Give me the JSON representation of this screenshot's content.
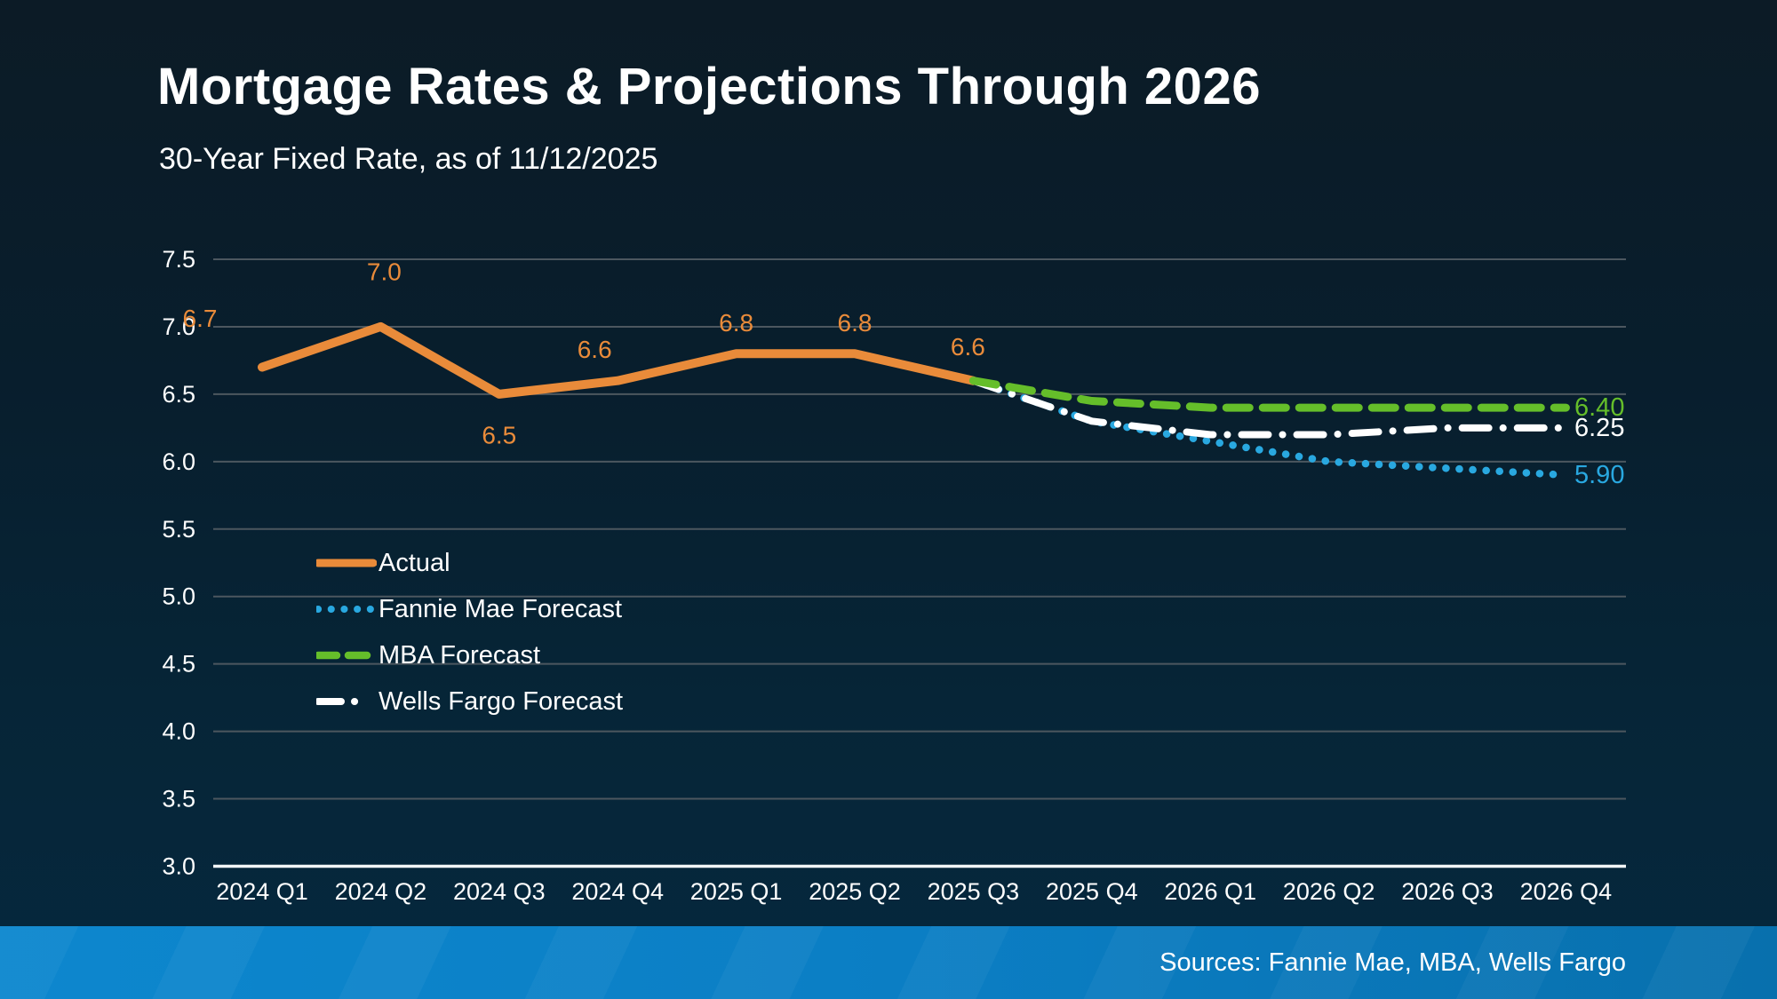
{
  "page": {
    "title": "Mortgage Rates & Projections Through 2026",
    "subtitle": "30-Year Fixed Rate, as of 11/12/2025"
  },
  "footer": {
    "sources": "Sources: Fannie Mae, MBA, Wells Fargo"
  },
  "colors": {
    "background_top": "#0C1B26",
    "background_bottom": "#05283E",
    "gridline": "#4C575F",
    "axis_line": "#F2F6F8",
    "text": "#FFFFFF",
    "accent_orange": "#E98B3A",
    "accent_blue": "#29A8E0",
    "accent_green": "#65BE2A",
    "footer_blue_left": "#0D87CE",
    "footer_blue_right": "#0870AD"
  },
  "chart_data": {
    "type": "line",
    "title": "Mortgage Rates & Projections Through 2026",
    "subtitle": "30-Year Fixed Rate, as of 11/12/2025",
    "categories": [
      "2024 Q1",
      "2024 Q2",
      "2024 Q3",
      "2024 Q4",
      "2025 Q1",
      "2025 Q2",
      "2025 Q3",
      "2025 Q4",
      "2026 Q1",
      "2026 Q2",
      "2026 Q3",
      "2026 Q4"
    ],
    "ylim": [
      3.0,
      7.5
    ],
    "ytick_step": 0.5,
    "ytick_labels": [
      "7.5",
      "7.0",
      "6.5",
      "6.0",
      "5.5",
      "5.0",
      "4.5",
      "4.0",
      "3.5",
      "3.0"
    ],
    "grid": true,
    "legend_position": "inside-left",
    "series": [
      {
        "name": "Actual",
        "style": "solid",
        "color": "#E98B3A",
        "values": [
          6.7,
          7.0,
          6.5,
          6.6,
          6.8,
          6.8,
          6.6,
          null,
          null,
          null,
          null,
          null
        ],
        "point_labels": [
          "6.7",
          "7.0",
          "6.5",
          "6.6",
          "6.8",
          "6.8",
          "6.6"
        ]
      },
      {
        "name": "Fannie Mae Forecast",
        "style": "dotted",
        "color": "#29A8E0",
        "values": [
          null,
          null,
          null,
          null,
          null,
          null,
          6.6,
          6.3,
          6.15,
          6.0,
          5.95,
          5.9
        ],
        "end_label": "5.90"
      },
      {
        "name": "MBA Forecast",
        "style": "dashed",
        "color": "#65BE2A",
        "values": [
          null,
          null,
          null,
          null,
          null,
          null,
          6.6,
          6.45,
          6.4,
          6.4,
          6.4,
          6.4
        ],
        "end_label": "6.40"
      },
      {
        "name": "Wells Fargo Forecast",
        "style": "dashdot",
        "color": "#FFFFFF",
        "values": [
          null,
          null,
          null,
          null,
          null,
          null,
          6.6,
          6.3,
          6.2,
          6.2,
          6.25,
          6.25
        ],
        "end_label": "6.25"
      }
    ],
    "sources": "Sources: Fannie Mae, MBA, Wells Fargo"
  }
}
